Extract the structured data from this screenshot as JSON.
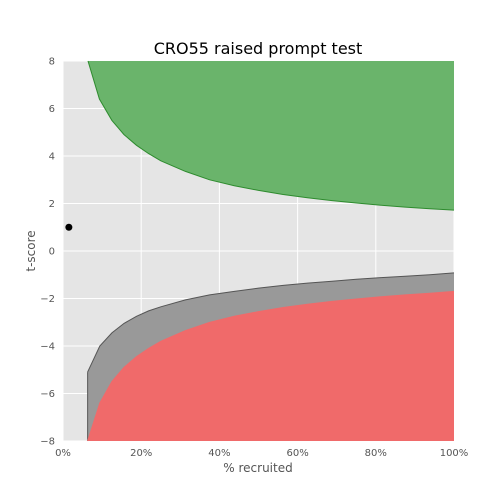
{
  "chart_data": {
    "type": "area",
    "title": "CRO55 raised prompt test",
    "xlabel": "% recruited",
    "ylabel": "t-score",
    "xlim": [
      0,
      100
    ],
    "ylim": [
      -8,
      8
    ],
    "grid": true,
    "x_ticks": [
      0,
      20,
      40,
      60,
      80,
      100
    ],
    "x_tick_labels": [
      "0%",
      "20%",
      "40%",
      "60%",
      "80%",
      "100%"
    ],
    "y_ticks": [
      8,
      6,
      4,
      2,
      0,
      -2,
      -4,
      -6,
      -8
    ],
    "y_tick_labels": [
      "8",
      "6",
      "4",
      "2",
      "0",
      "−2",
      "−4",
      "−6",
      "−8"
    ],
    "colors": {
      "background": "#e5e5e5",
      "upper_region": "#6ab46b",
      "upper_edge": "#2e8b2e",
      "grey_band": "#999999",
      "grey_edge": "#555555",
      "lower_region": "#f06a6a",
      "point": "#000000"
    },
    "series": [
      {
        "role": "upper-boundary",
        "x": [
          6.4,
          9.3,
          12.5,
          15.6,
          18.8,
          21.9,
          25,
          31.3,
          37.5,
          43.8,
          50,
          56.3,
          62.5,
          68.8,
          75,
          81.3,
          87.5,
          93.8,
          100
        ],
        "y": [
          8,
          6.4,
          5.5,
          4.9,
          4.45,
          4.1,
          3.8,
          3.35,
          3.0,
          2.75,
          2.55,
          2.38,
          2.24,
          2.12,
          2.02,
          1.93,
          1.85,
          1.78,
          1.72
        ]
      },
      {
        "role": "lower-boundary",
        "x": [
          6.3,
          9.4,
          12.5,
          15.6,
          18.8,
          21.9,
          25,
          31.3,
          37.5,
          43.8,
          50,
          56.3,
          62.5,
          68.8,
          75,
          81.3,
          87.5,
          93.8,
          100
        ],
        "y": [
          -8,
          -6.4,
          -5.5,
          -4.9,
          -4.45,
          -4.1,
          -3.8,
          -3.35,
          -3.0,
          -2.75,
          -2.55,
          -2.38,
          -2.24,
          -2.12,
          -2.02,
          -1.93,
          -1.85,
          -1.78,
          -1.7
        ]
      },
      {
        "role": "grey-band-top",
        "x": [
          6.3,
          9.4,
          12.5,
          15.6,
          18.8,
          21.9,
          25,
          31.3,
          37.5,
          43.8,
          50,
          56.3,
          62.5,
          68.8,
          75,
          81.3,
          87.5,
          93.8,
          100
        ],
        "y": [
          -5.1,
          -4.0,
          -3.45,
          -3.05,
          -2.75,
          -2.52,
          -2.35,
          -2.06,
          -1.85,
          -1.7,
          -1.56,
          -1.45,
          -1.35,
          -1.27,
          -1.19,
          -1.12,
          -1.06,
          -1.0,
          -0.92
        ]
      }
    ],
    "points": [
      {
        "x": 1.5,
        "y": 1.0
      }
    ]
  }
}
